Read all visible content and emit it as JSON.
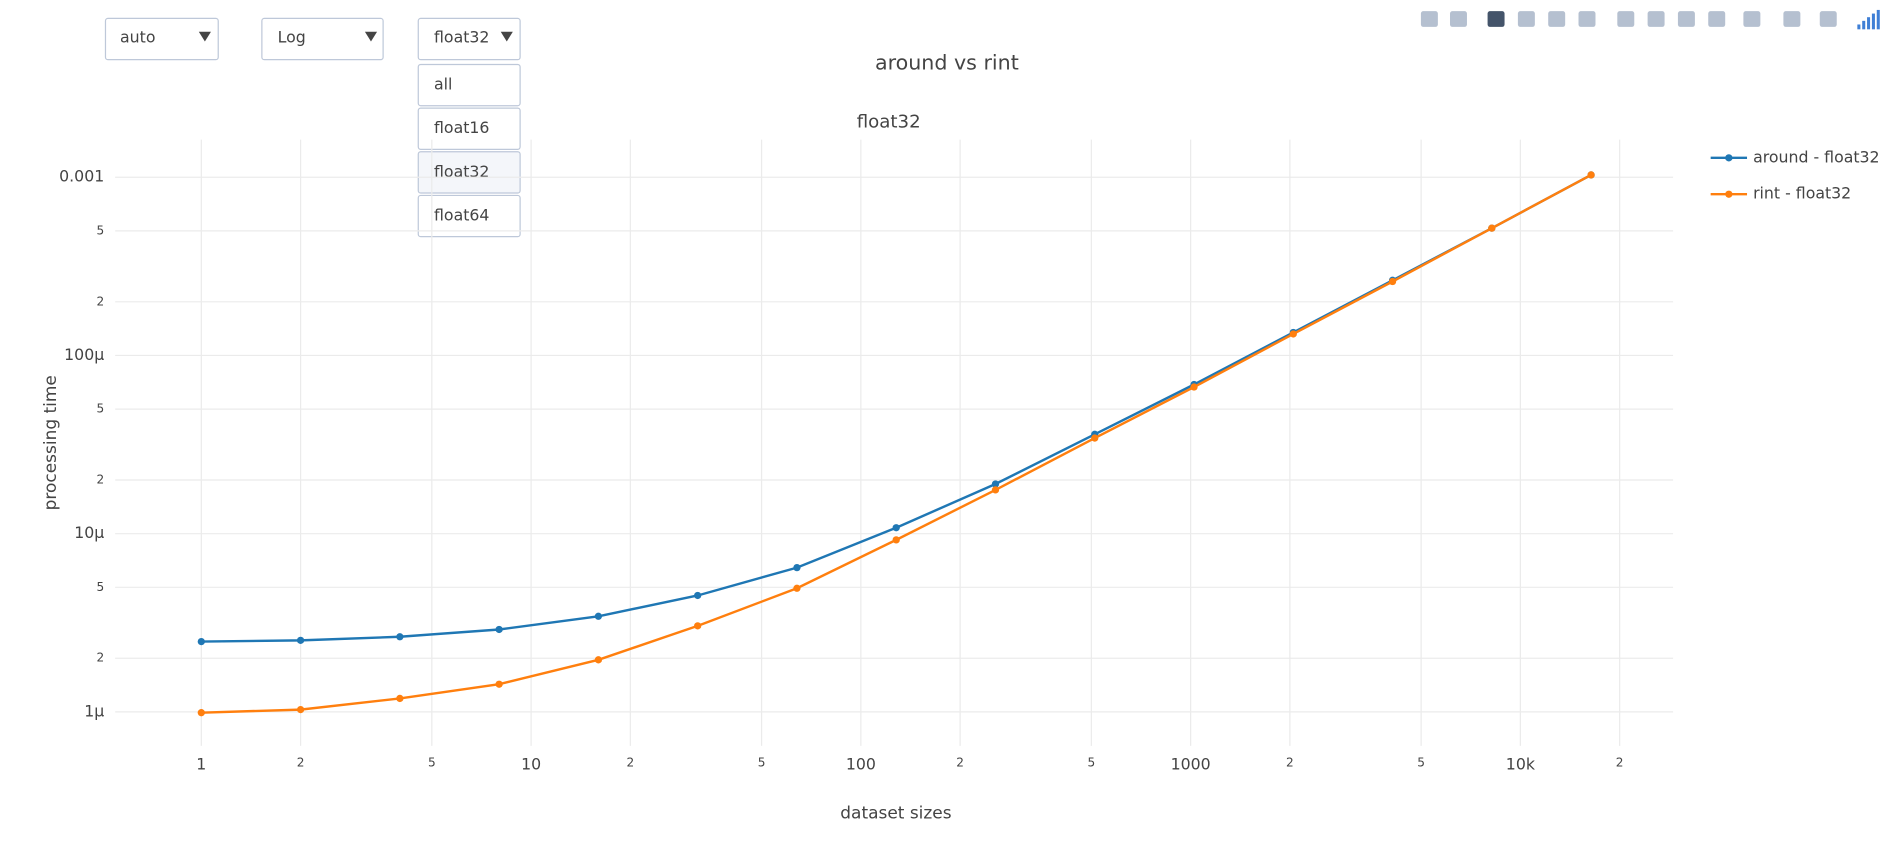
{
  "controls": {
    "dropdowns": [
      {
        "value": "auto"
      },
      {
        "value": "Log"
      },
      {
        "value": "float32",
        "options": [
          "all",
          "float16",
          "float32",
          "float64"
        ]
      }
    ]
  },
  "chart_data": {
    "type": "line",
    "title": "around vs rint",
    "subtitle": "float32",
    "x_label": "dataset sizes",
    "y_label": "processing time",
    "log_x": true,
    "log_y": true,
    "grid": true,
    "legend": "top-right",
    "x": [
      1,
      2,
      4,
      8,
      16,
      32,
      64,
      128,
      256,
      512,
      1024,
      2048,
      4096,
      8192,
      16384
    ],
    "series": [
      {
        "name": "around - float32",
        "color": "#1f77b4",
        "values": [
          2.48e-06,
          2.52e-06,
          2.64e-06,
          2.9e-06,
          3.44e-06,
          4.5e-06,
          6.45e-06,
          1.08e-05,
          1.9e-05,
          3.61e-05,
          6.87e-05,
          0.0001346,
          0.000264,
          0.000518,
          0.00103
        ]
      },
      {
        "name": "rint - float32",
        "color": "#ff7f0e",
        "values": [
          9.9e-07,
          1.03e-06,
          1.19e-06,
          1.43e-06,
          1.96e-06,
          3.04e-06,
          4.94e-06,
          9.23e-06,
          1.76e-05,
          3.44e-05,
          6.65e-05,
          0.000132,
          0.00026,
          0.000518,
          0.00103
        ]
      }
    ],
    "xlim": [
      0.548,
      29040
    ],
    "ylim": [
      6.45e-07,
      0.001625
    ],
    "xticks": [
      1,
      2,
      5,
      10,
      {
        "value": 20,
        "label": "2"
      },
      {
        "value": 50,
        "label": "5"
      },
      100,
      {
        "value": 200,
        "label": "2"
      },
      {
        "value": 500,
        "label": "5"
      },
      1000,
      {
        "value": 2000,
        "label": "2"
      },
      {
        "value": 5000,
        "label": "5"
      },
      {
        "value": 10000,
        "label": "10k"
      },
      {
        "value": 20000,
        "label": "2"
      }
    ],
    "yticks": [
      {
        "value": 1e-06,
        "label": "1µ"
      },
      {
        "value": 2e-06,
        "label": "2"
      },
      {
        "value": 5e-06,
        "label": "5"
      },
      {
        "value": 1e-05,
        "label": "10µ"
      },
      {
        "value": 2e-05,
        "label": "2"
      },
      {
        "value": 5e-05,
        "label": "5"
      },
      {
        "value": 0.0001,
        "label": "100µ"
      },
      {
        "value": 0.0002,
        "label": "2"
      },
      {
        "value": 0.0005,
        "label": "5"
      },
      0.001
    ]
  }
}
